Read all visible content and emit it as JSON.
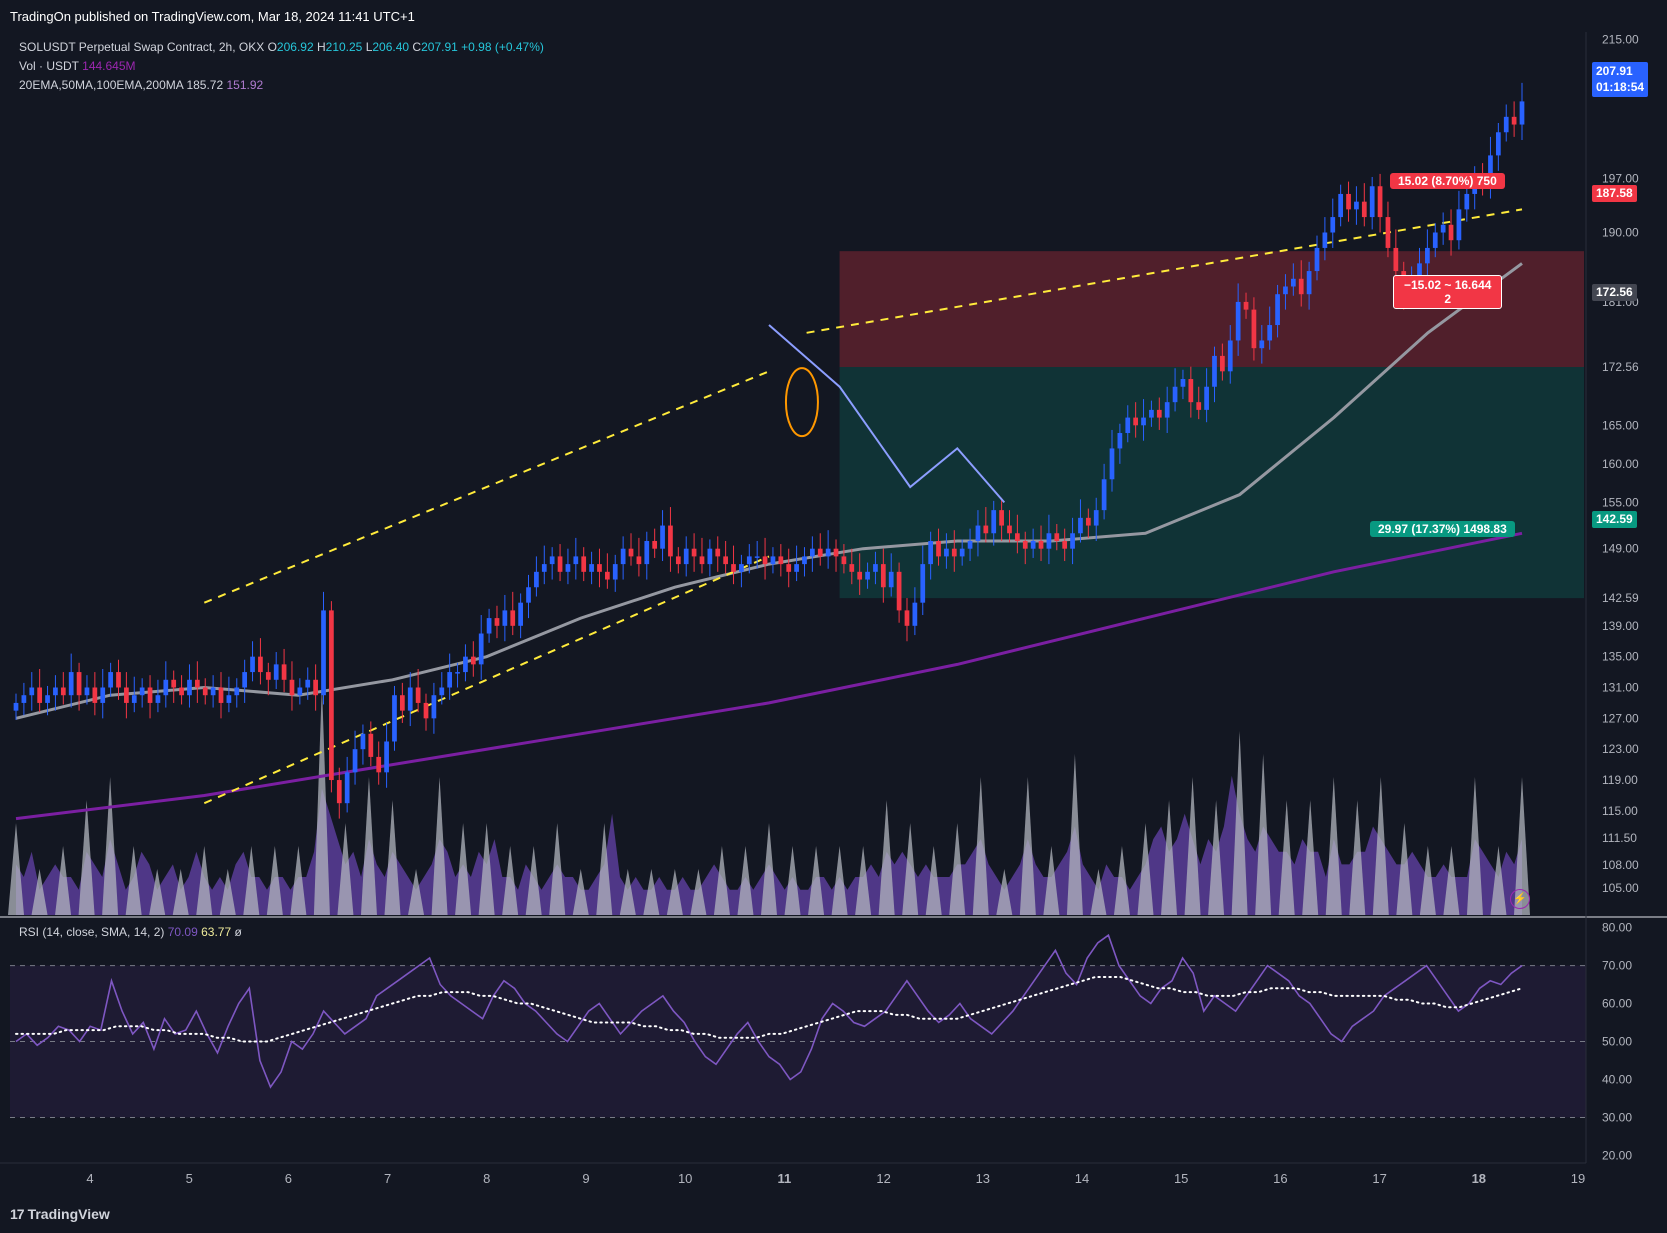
{
  "header": {
    "publish_text": "TradingOn published on TradingView.com, Mar 18, 2024 11:41 UTC+1"
  },
  "legend": {
    "symbol": "SOLUSDT Perpetual Swap Contract, 2h, OKX",
    "open_label": "O",
    "open": "206.92",
    "high_label": "H",
    "high": "210.25",
    "low_label": "L",
    "low": "206.40",
    "close_label": "C",
    "close": "207.91",
    "change": "+0.98 (+0.47%)",
    "vol_label": "Vol · USDT",
    "vol_value": "144.645M",
    "ma_label": "20EMA,50MA,100EMA,200MA",
    "ma_value_1": "185.72",
    "ma_value_2": "151.92"
  },
  "rsi_legend": {
    "label": "RSI (14, close, SMA, 14, 2)",
    "value_1": "70.09",
    "value_2": "63.77",
    "extra": "ø"
  },
  "price_tags": {
    "last_price": "207.91",
    "countdown": "01:18:54",
    "stop_level": "187.58",
    "entry_level": "172.56",
    "target_level": "142.59"
  },
  "position_labels": {
    "stop": "15.02 (8.70%) 750",
    "entry_line1": "−15.02 ~ 16.644",
    "entry_line2": "2",
    "target": "29.97 (17.37%) 1498.83"
  },
  "colors": {
    "background": "#131722",
    "bull": "#2962ff",
    "bear": "#f23645",
    "channel": "#ffeb3b",
    "ma_gray": "#9598a1",
    "ma_purple": "#7b1fa2",
    "rsi_line": "#7e57c2",
    "stop_zone": "#f23645",
    "target_zone": "#089981"
  },
  "footer": {
    "brand_mark": "17",
    "brand": "TradingView"
  },
  "chart_data": {
    "type": "candlestick",
    "interval": "2h",
    "price_axis_ticks": [
      "215.00",
      "197.00",
      "190.00",
      "181.00",
      "172.56",
      "165.00",
      "160.00",
      "155.00",
      "149.00",
      "142.59",
      "139.00",
      "135.00",
      "131.00",
      "127.00",
      "123.00",
      "119.00",
      "115.00",
      "111.50",
      "108.00",
      "105.00"
    ],
    "rsi_axis_ticks": [
      "80.00",
      "70.00",
      "60.00",
      "50.00",
      "40.00",
      "30.00",
      "20.00"
    ],
    "rsi_bands": [
      70,
      50,
      30
    ],
    "time_axis_ticks": [
      "4",
      "5",
      "6",
      "7",
      "8",
      "9",
      "10",
      "11",
      "12",
      "13",
      "14",
      "15",
      "16",
      "17",
      "18",
      "19"
    ],
    "closes": [
      129,
      130,
      131,
      129,
      130,
      131,
      130,
      133,
      130,
      131,
      129,
      131,
      133,
      131,
      129,
      130,
      131,
      129,
      130,
      132,
      131,
      130,
      132,
      131,
      130,
      131,
      129,
      130,
      131,
      133,
      135,
      133,
      132,
      134,
      132,
      130,
      131,
      132,
      130,
      141,
      119,
      116,
      120,
      123,
      125,
      122,
      120,
      124,
      130,
      128,
      131,
      129,
      127,
      130,
      131,
      133,
      133,
      135,
      134,
      138,
      140,
      139,
      141,
      139,
      142,
      144,
      146,
      147,
      148,
      146,
      147,
      148,
      146,
      147,
      146,
      145,
      147,
      149,
      148,
      147,
      150,
      149,
      152,
      148,
      147,
      149,
      148,
      147,
      149,
      148,
      147,
      146,
      147,
      148,
      148,
      147,
      148,
      147,
      146,
      147,
      148,
      149,
      148,
      149,
      148,
      147,
      146,
      145,
      146,
      147,
      144,
      146,
      141,
      139,
      142,
      147,
      150,
      148,
      149,
      148,
      149,
      150,
      152,
      151,
      154,
      152,
      151,
      150,
      149,
      150,
      149,
      151,
      150,
      149,
      151,
      153,
      152,
      154,
      158,
      162,
      164,
      166,
      165,
      166,
      167,
      166,
      168,
      170,
      171,
      168,
      167,
      170,
      174,
      172,
      176,
      181,
      180,
      175,
      176,
      178,
      182,
      183,
      184,
      182,
      185,
      188,
      190,
      192,
      195,
      193,
      194,
      192,
      196,
      192,
      188,
      185,
      182,
      184,
      186,
      188,
      190,
      191,
      189,
      193,
      195,
      197,
      196,
      200,
      203,
      205,
      204,
      207
    ],
    "ma_gray_points": [
      [
        0,
        127
      ],
      [
        20,
        130
      ],
      [
        40,
        131
      ],
      [
        60,
        130
      ],
      [
        80,
        132
      ],
      [
        100,
        135
      ],
      [
        120,
        140
      ],
      [
        140,
        144
      ],
      [
        160,
        147
      ],
      [
        180,
        149
      ],
      [
        200,
        150
      ],
      [
        220,
        150
      ],
      [
        240,
        151
      ],
      [
        260,
        156
      ],
      [
        280,
        166
      ],
      [
        300,
        177
      ],
      [
        320,
        186
      ]
    ],
    "ma_purple_points": [
      [
        0,
        114
      ],
      [
        40,
        117
      ],
      [
        80,
        121
      ],
      [
        120,
        125
      ],
      [
        160,
        129
      ],
      [
        200,
        134
      ],
      [
        240,
        140
      ],
      [
        280,
        146
      ],
      [
        320,
        151
      ]
    ],
    "channel_upper": [
      [
        40,
        142
      ],
      [
        160,
        172
      ]
    ],
    "channel_lower": [
      [
        40,
        116
      ],
      [
        160,
        148
      ]
    ],
    "channel_mid_ext": [
      [
        168,
        177
      ],
      [
        320,
        193
      ]
    ],
    "projection_path": [
      [
        160,
        178
      ],
      [
        175,
        170
      ],
      [
        190,
        157
      ],
      [
        200,
        162
      ],
      [
        210,
        155
      ]
    ],
    "position": {
      "stop": 187.58,
      "entry": 172.56,
      "target": 142.59
    },
    "volume_relative": [
      0.4,
      0.3,
      0.5,
      0.2,
      0.3,
      0.4,
      0.3,
      0.3,
      0.2,
      0.5,
      0.4,
      0.3,
      0.6,
      0.4,
      0.2,
      0.3,
      0.5,
      0.4,
      0.2,
      0.3,
      0.4,
      0.2,
      0.3,
      0.5,
      0.3,
      0.2,
      0.3,
      0.2,
      0.4,
      0.5,
      0.3,
      0.3,
      0.2,
      0.3,
      0.3,
      0.2,
      0.3,
      0.3,
      0.5,
      1.0,
      0.8,
      0.6,
      0.4,
      0.5,
      0.3,
      0.6,
      0.4,
      0.3,
      0.5,
      0.4,
      0.3,
      0.2,
      0.3,
      0.4,
      0.6,
      0.5,
      0.3,
      0.4,
      0.3,
      0.5,
      0.4,
      0.6,
      0.3,
      0.3,
      0.2,
      0.4,
      0.3,
      0.2,
      0.3,
      0.4,
      0.3,
      0.3,
      0.2,
      0.2,
      0.3,
      0.4,
      0.8,
      0.3,
      0.2,
      0.3,
      0.2,
      0.2,
      0.3,
      0.2,
      0.2,
      0.3,
      0.2,
      0.2,
      0.3,
      0.4,
      0.3,
      0.2,
      0.2,
      0.3,
      0.2,
      0.3,
      0.4,
      0.3,
      0.2,
      0.3,
      0.2,
      0.2,
      0.3,
      0.3,
      0.2,
      0.3,
      0.2,
      0.3,
      0.3,
      0.4,
      0.3,
      0.5,
      0.4,
      0.5,
      0.4,
      0.3,
      0.4,
      0.3,
      0.3,
      0.3,
      0.4,
      0.4,
      0.5,
      0.6,
      0.4,
      0.3,
      0.2,
      0.3,
      0.4,
      0.6,
      0.4,
      0.3,
      0.3,
      0.4,
      0.5,
      0.7,
      0.4,
      0.3,
      0.2,
      0.4,
      0.3,
      0.3,
      0.2,
      0.3,
      0.4,
      0.6,
      0.7,
      0.5,
      0.6,
      0.8,
      0.6,
      0.4,
      0.6,
      0.5,
      0.7,
      1.1,
      0.8,
      0.6,
      0.5,
      0.7,
      0.6,
      0.5,
      0.5,
      0.4,
      0.6,
      0.5,
      0.5,
      0.3,
      0.6,
      0.4,
      0.4,
      0.5,
      0.5,
      0.7,
      0.6,
      0.5,
      0.4,
      0.4,
      0.5,
      0.4,
      0.3,
      0.3,
      0.4,
      0.3,
      0.3,
      0.3,
      0.6,
      0.5,
      0.4,
      0.3,
      0.5,
      0.4,
      0.6
    ],
    "rsi": [
      50,
      52,
      49,
      51,
      54,
      53,
      50,
      54,
      53,
      66,
      58,
      52,
      55,
      48,
      56,
      52,
      53,
      58,
      52,
      47,
      54,
      60,
      64,
      45,
      38,
      42,
      50,
      48,
      52,
      58,
      55,
      52,
      54,
      56,
      62,
      64,
      66,
      68,
      70,
      72,
      65,
      62,
      60,
      58,
      56,
      62,
      66,
      64,
      60,
      58,
      55,
      52,
      50,
      54,
      58,
      60,
      56,
      52,
      55,
      58,
      60,
      62,
      58,
      55,
      50,
      46,
      44,
      48,
      52,
      55,
      50,
      46,
      44,
      40,
      42,
      48,
      56,
      60,
      58,
      55,
      54,
      56,
      58,
      62,
      66,
      62,
      58,
      55,
      57,
      60,
      56,
      54,
      52,
      55,
      58,
      62,
      66,
      70,
      74,
      68,
      65,
      72,
      76,
      78,
      70,
      66,
      62,
      60,
      64,
      66,
      72,
      68,
      58,
      62,
      60,
      58,
      62,
      66,
      70,
      68,
      66,
      62,
      60,
      56,
      52,
      50,
      54,
      56,
      58,
      62,
      64,
      66,
      68,
      70,
      66,
      62,
      58,
      60,
      64,
      66,
      65,
      68,
      70
    ],
    "rsi_sma": [
      52,
      52,
      52,
      52,
      53,
      53,
      53,
      53,
      54,
      54,
      54,
      53,
      53,
      52,
      52,
      52,
      51,
      51,
      50,
      50,
      50,
      51,
      52,
      53,
      54,
      55,
      56,
      57,
      58,
      59,
      60,
      61,
      62,
      62,
      63,
      63,
      63,
      62,
      62,
      61,
      60,
      60,
      59,
      58,
      57,
      56,
      55,
      55,
      55,
      55,
      54,
      54,
      53,
      53,
      52,
      52,
      51,
      51,
      51,
      51,
      52,
      52,
      53,
      54,
      55,
      56,
      57,
      58,
      58,
      58,
      57,
      57,
      56,
      56,
      56,
      56,
      57,
      58,
      59,
      60,
      61,
      62,
      63,
      64,
      65,
      66,
      67,
      67,
      67,
      66,
      65,
      64,
      64,
      63,
      63,
      62,
      62,
      62,
      63,
      63,
      64,
      64,
      64,
      63,
      63,
      62,
      62,
      62,
      62,
      62,
      61,
      61,
      60,
      60,
      59,
      59,
      60,
      61,
      62,
      63,
      64
    ]
  }
}
